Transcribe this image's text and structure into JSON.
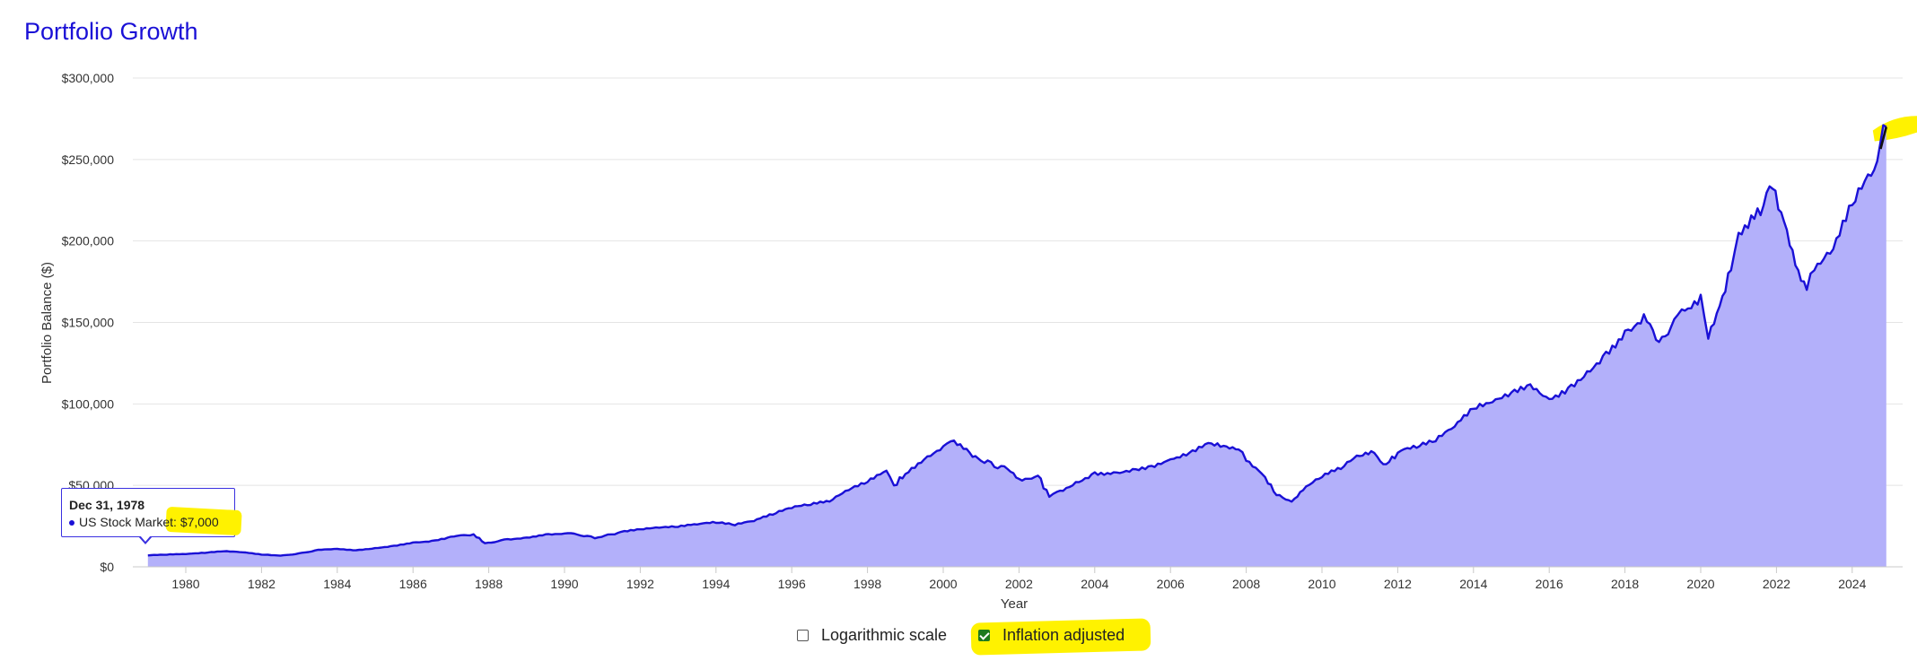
{
  "title": "Portfolio Growth",
  "chart_data": {
    "type": "area",
    "title": "Portfolio Growth",
    "xlabel": "Year",
    "ylabel": "Portfolio Balance ($)",
    "xlim": [
      1978,
      2025.5
    ],
    "ylim": [
      0,
      300000
    ],
    "grid": true,
    "yticks": [
      {
        "value": 0,
        "label": "$0"
      },
      {
        "value": 50000,
        "label": "$50,000"
      },
      {
        "value": 100000,
        "label": "$100,000"
      },
      {
        "value": 150000,
        "label": "$150,000"
      },
      {
        "value": 200000,
        "label": "$200,000"
      },
      {
        "value": 250000,
        "label": "$250,000"
      },
      {
        "value": 300000,
        "label": "$300,000"
      }
    ],
    "xticks": [
      "1980",
      "1982",
      "1984",
      "1986",
      "1988",
      "1990",
      "1992",
      "1994",
      "1996",
      "1998",
      "2000",
      "2002",
      "2004",
      "2006",
      "2008",
      "2010",
      "2012",
      "2014",
      "2016",
      "2018",
      "2020",
      "2022",
      "2024"
    ],
    "series": [
      {
        "name": "US Stock Market",
        "color": "#1a10d6",
        "fill": "#b3b0fa",
        "x": [
          1979.0,
          1979.5,
          1980.0,
          1980.5,
          1981.0,
          1981.5,
          1982.0,
          1982.5,
          1982.9,
          1983.5,
          1984.0,
          1984.5,
          1985.0,
          1985.5,
          1986.0,
          1986.5,
          1987.0,
          1987.6,
          1987.9,
          1988.5,
          1989.0,
          1989.5,
          1990.0,
          1990.6,
          1990.8,
          1991.5,
          1992.0,
          1992.5,
          1993.0,
          1993.5,
          1994.0,
          1994.5,
          1995.0,
          1995.5,
          1996.0,
          1996.5,
          1997.0,
          1997.5,
          1998.0,
          1998.5,
          1998.7,
          1999.0,
          1999.5,
          2000.0,
          2000.2,
          2000.7,
          2001.0,
          2001.7,
          2002.0,
          2002.5,
          2002.8,
          2003.0,
          2003.5,
          2004.0,
          2004.5,
          2005.0,
          2005.5,
          2006.0,
          2006.5,
          2007.0,
          2007.8,
          2008.0,
          2008.5,
          2008.8,
          2009.2,
          2009.5,
          2010.0,
          2010.5,
          2011.0,
          2011.3,
          2011.7,
          2012.0,
          2012.5,
          2013.0,
          2013.5,
          2014.0,
          2014.5,
          2015.0,
          2015.5,
          2016.0,
          2016.5,
          2017.0,
          2017.5,
          2018.0,
          2018.5,
          2018.9,
          2019.3,
          2019.5,
          2020.0,
          2020.2,
          2020.5,
          2020.8,
          2021.0,
          2021.5,
          2021.9,
          2022.2,
          2022.5,
          2022.8,
          2023.0,
          2023.5,
          2024.0,
          2024.5,
          2024.9
        ],
        "y": [
          7000,
          7400,
          7800,
          8500,
          9500,
          8900,
          7500,
          6800,
          7800,
          10500,
          11000,
          10200,
          11500,
          13000,
          15000,
          16000,
          18500,
          20000,
          14500,
          17000,
          18000,
          20000,
          20500,
          19000,
          17500,
          21500,
          23000,
          24000,
          24500,
          26000,
          27000,
          25500,
          28000,
          32000,
          36000,
          38000,
          40000,
          47000,
          52000,
          59000,
          50000,
          57000,
          66000,
          74000,
          77000,
          70000,
          65000,
          60000,
          54000,
          56000,
          43000,
          46000,
          52000,
          58000,
          58000,
          60000,
          62000,
          66000,
          70000,
          76000,
          72000,
          65000,
          55000,
          44000,
          40000,
          47000,
          55000,
          60000,
          68000,
          71000,
          63000,
          70000,
          73000,
          77000,
          86000,
          97000,
          101000,
          107000,
          112000,
          103000,
          110000,
          120000,
          132000,
          145000,
          155000,
          138000,
          152000,
          158000,
          167000,
          140000,
          160000,
          182000,
          205000,
          220000,
          232000,
          212000,
          185000,
          170000,
          182000,
          195000,
          222000,
          240000,
          270000
        ]
      }
    ],
    "tooltip": {
      "date": "Dec 31, 1978",
      "series": "US Stock Market",
      "value": "$7,000"
    }
  },
  "controls": {
    "log_label": "Logarithmic scale",
    "log_checked": false,
    "inflation_label": "Inflation adjusted",
    "inflation_checked": true
  }
}
